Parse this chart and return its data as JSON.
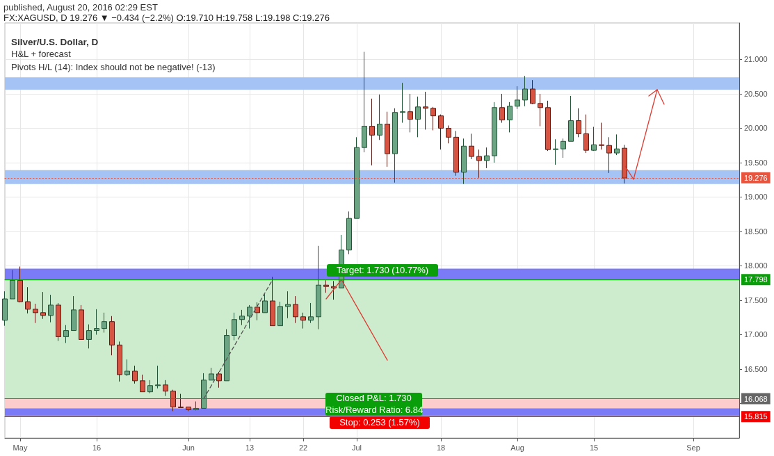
{
  "chart_data": {
    "type": "candlestick",
    "title": "FX:XAGUSD, D 19.276 ▼ −0.434 (−2.2%) O:19.710 H:19.758 L:19.198 C:19.276",
    "subtitle": "Silver/U.S. Dollar, D",
    "annotations": [
      "published, August 20, 2016 02:29 EST",
      "H&L + forecast",
      "Pivots H/L (14): Index should not be negative! (-13)",
      "Target: 1.730 (10.77%)",
      "Closed P&L: 1.730",
      "Risk/Reward Ratio: 6.84",
      "Stop: 0.253 (1.57%)"
    ],
    "categories": [
      null,
      null,
      "May",
      null,
      null,
      null,
      null,
      null,
      null,
      null,
      null,
      null,
      "16",
      null,
      null,
      null,
      null,
      null,
      null,
      null,
      null,
      null,
      null,
      null,
      "Jun",
      null,
      null,
      null,
      null,
      null,
      null,
      null,
      "13",
      null,
      null,
      null,
      null,
      null,
      null,
      "22",
      null,
      null,
      null,
      null,
      null,
      null,
      "Jul",
      null,
      null,
      null,
      null,
      null,
      null,
      null,
      null,
      null,
      null,
      "18",
      null,
      null,
      null,
      null,
      null,
      null,
      null,
      null,
      null,
      "Aug",
      null,
      null,
      null,
      null,
      null,
      null,
      null,
      null,
      null,
      "15",
      null,
      null,
      null,
      null,
      null,
      null,
      null,
      null,
      null,
      null,
      null,
      null,
      "Sep",
      null,
      null,
      null,
      null,
      null,
      null
    ],
    "ohlc": [
      [
        17.21,
        17.63,
        17.13,
        17.52
      ],
      [
        17.52,
        17.94,
        17.52,
        17.79
      ],
      [
        17.79,
        17.99,
        17.47,
        17.48
      ],
      [
        17.48,
        17.69,
        17.31,
        17.37
      ],
      [
        17.37,
        17.45,
        17.17,
        17.32
      ],
      [
        17.32,
        17.62,
        17.23,
        17.28
      ],
      [
        17.28,
        17.58,
        17.18,
        17.43
      ],
      [
        17.43,
        17.46,
        16.91,
        16.97
      ],
      [
        16.97,
        17.14,
        16.88,
        17.06
      ],
      [
        17.06,
        17.56,
        17.06,
        17.36
      ],
      [
        17.36,
        17.43,
        16.93,
        16.93
      ],
      [
        16.93,
        17.15,
        16.8,
        17.06
      ],
      [
        17.06,
        17.37,
        17.0,
        17.09
      ],
      [
        17.09,
        17.32,
        17.03,
        17.19
      ],
      [
        17.19,
        17.27,
        16.7,
        16.85
      ],
      [
        16.85,
        16.9,
        16.32,
        16.42
      ],
      [
        16.42,
        16.64,
        16.4,
        16.47
      ],
      [
        16.47,
        16.55,
        16.29,
        16.33
      ],
      [
        16.33,
        16.42,
        16.17,
        16.17
      ],
      [
        16.17,
        16.34,
        16.15,
        16.26
      ],
      [
        16.26,
        16.55,
        16.22,
        16.27
      ],
      [
        16.27,
        16.34,
        16.11,
        16.18
      ],
      [
        16.18,
        16.2,
        15.89,
        15.95
      ],
      [
        15.95,
        16.14,
        15.94,
        15.94
      ],
      [
        15.95,
        15.95,
        15.89,
        15.91
      ],
      [
        15.91,
        16.03,
        15.9,
        15.93
      ],
      [
        15.93,
        16.44,
        15.93,
        16.34
      ],
      [
        16.34,
        16.52,
        16.34,
        16.43
      ],
      [
        16.43,
        16.46,
        16.23,
        16.33
      ],
      [
        16.33,
        17.08,
        16.33,
        16.99
      ],
      [
        16.99,
        17.32,
        16.92,
        17.22
      ],
      [
        17.22,
        17.36,
        17.14,
        17.27
      ],
      [
        17.27,
        17.43,
        17.09,
        17.4
      ],
      [
        17.4,
        17.47,
        17.21,
        17.32
      ],
      [
        17.32,
        17.59,
        17.32,
        17.49
      ],
      [
        17.49,
        17.84,
        17.13,
        17.13
      ],
      [
        17.13,
        17.48,
        17.13,
        17.41
      ],
      [
        17.41,
        17.63,
        17.24,
        17.44
      ],
      [
        17.44,
        17.56,
        17.17,
        17.26
      ],
      [
        17.26,
        17.32,
        17.09,
        17.21
      ],
      [
        17.21,
        17.46,
        17.17,
        17.26
      ],
      [
        17.26,
        18.29,
        17.08,
        17.72
      ],
      [
        17.72,
        17.79,
        17.61,
        17.7
      ],
      [
        17.7,
        17.78,
        17.51,
        17.68
      ],
      [
        17.68,
        18.45,
        17.68,
        18.23
      ],
      [
        18.23,
        18.79,
        18.17,
        18.69
      ],
      [
        18.69,
        19.87,
        18.69,
        19.72
      ],
      [
        19.72,
        21.11,
        19.65,
        20.03
      ],
      [
        20.03,
        20.43,
        19.46,
        19.9
      ],
      [
        19.9,
        20.49,
        19.83,
        20.06
      ],
      [
        20.06,
        20.24,
        19.44,
        19.63
      ],
      [
        19.63,
        20.29,
        19.21,
        20.23
      ],
      [
        20.23,
        20.66,
        20.08,
        20.24
      ],
      [
        20.24,
        20.5,
        19.94,
        20.13
      ],
      [
        20.13,
        20.46,
        19.87,
        20.31
      ],
      [
        20.31,
        20.53,
        19.98,
        20.29
      ],
      [
        20.29,
        20.31,
        19.97,
        20.18
      ],
      [
        20.18,
        20.2,
        19.69,
        20.0
      ],
      [
        20.0,
        20.04,
        19.78,
        19.87
      ],
      [
        19.87,
        19.96,
        19.31,
        19.36
      ],
      [
        19.36,
        19.85,
        19.19,
        19.74
      ],
      [
        19.74,
        19.92,
        19.55,
        19.59
      ],
      [
        19.59,
        19.69,
        19.28,
        19.53
      ],
      [
        19.53,
        19.72,
        19.42,
        19.6
      ],
      [
        19.6,
        20.38,
        19.5,
        20.3
      ],
      [
        20.3,
        20.5,
        20.08,
        20.12
      ],
      [
        20.12,
        20.38,
        19.94,
        20.32
      ],
      [
        20.32,
        20.61,
        20.28,
        20.41
      ],
      [
        20.41,
        20.76,
        20.32,
        20.57
      ],
      [
        20.57,
        20.7,
        20.35,
        20.36
      ],
      [
        20.36,
        20.5,
        20.03,
        20.3
      ],
      [
        20.3,
        20.4,
        19.67,
        19.69
      ],
      [
        19.69,
        19.84,
        19.47,
        19.7
      ],
      [
        19.7,
        19.85,
        19.57,
        19.81
      ],
      [
        19.81,
        20.47,
        19.81,
        20.11
      ],
      [
        20.11,
        20.29,
        19.87,
        19.92
      ],
      [
        19.92,
        20.2,
        19.64,
        19.68
      ],
      [
        19.68,
        20.02,
        19.67,
        19.76
      ],
      [
        19.76,
        20.08,
        19.69,
        19.75
      ],
      [
        19.75,
        19.87,
        19.35,
        19.64
      ],
      [
        19.64,
        19.91,
        19.61,
        19.7
      ],
      [
        19.71,
        19.758,
        19.198,
        19.276
      ],
      null,
      null,
      null,
      null,
      null,
      null,
      null,
      null,
      null,
      null,
      null,
      null,
      null,
      null,
      null
    ],
    "series": [
      {
        "type": "line",
        "color": "#555555",
        "line_style": "dashed",
        "values": [
          null,
          null,
          null,
          null,
          null,
          null,
          null,
          null,
          null,
          null,
          null,
          null,
          null,
          null,
          null,
          null,
          null,
          null,
          null,
          null,
          null,
          null,
          null,
          null,
          null,
          null,
          16.07,
          null,
          null,
          null,
          null,
          null,
          null,
          null,
          null,
          17.8,
          null,
          null,
          null,
          null,
          null,
          null,
          null,
          null,
          null,
          null,
          null,
          null,
          null,
          null,
          null,
          null,
          null,
          null,
          null,
          null,
          null,
          null,
          null,
          null,
          null,
          null,
          null,
          null,
          null,
          null,
          null,
          null,
          null,
          null,
          null,
          null,
          null,
          null,
          null,
          null,
          null,
          null,
          null,
          null,
          null,
          null,
          null,
          null,
          null,
          null,
          null,
          null,
          null,
          null,
          null,
          null,
          null,
          null,
          null,
          null,
          null
        ]
      },
      {
        "type": "line",
        "color": "#dd3c32",
        "line_style": "solid",
        "values": [
          null,
          null,
          null,
          null,
          null,
          null,
          null,
          null,
          null,
          null,
          null,
          null,
          null,
          null,
          null,
          null,
          null,
          null,
          null,
          null,
          null,
          null,
          null,
          null,
          null,
          null,
          null,
          null,
          null,
          null,
          null,
          null,
          null,
          null,
          null,
          null,
          null,
          null,
          null,
          null,
          null,
          null,
          17.52,
          null,
          17.8,
          null,
          null,
          null,
          null,
          null,
          16.63,
          null,
          null,
          null,
          null,
          null,
          null,
          null,
          null,
          null,
          null,
          null,
          null,
          null,
          null,
          null,
          null,
          null,
          null,
          null,
          null,
          null,
          null,
          null,
          null,
          null,
          null,
          null,
          null,
          null,
          null,
          null,
          null,
          null,
          null,
          null,
          null,
          null,
          null,
          null,
          null,
          null,
          null,
          null,
          null,
          null,
          null
        ]
      }
    ],
    "ylim": [
      15.5,
      21.53
    ],
    "yticks": [
      {
        "value": 16,
        "label": null
      },
      {
        "value": 16.5,
        "label": "16.500"
      },
      {
        "value": 17,
        "label": "17.000"
      },
      {
        "value": 17.5,
        "label": "17.500"
      },
      {
        "value": 18,
        "label": "18.000"
      },
      {
        "value": 18.5,
        "label": "18.500"
      },
      {
        "value": 19,
        "label": "19.000"
      },
      {
        "value": 19.5,
        "label": "19.500"
      },
      {
        "value": 20,
        "label": "20.000"
      },
      {
        "value": 20.5,
        "label": "20.500"
      },
      {
        "value": 21,
        "label": "21.000"
      }
    ],
    "bands": [
      {
        "axis": "y",
        "from": 16.068,
        "to": 17.798,
        "color": "#cdebcd"
      },
      {
        "axis": "y",
        "from": 15.815,
        "to": 16.068,
        "color": "#fccbcb"
      },
      {
        "axis": "y",
        "from": 15.82,
        "to": 15.93,
        "color": "#7b7bf7"
      },
      {
        "axis": "y",
        "from": 17.79,
        "to": 17.96,
        "color": "#7b7bf7"
      },
      {
        "axis": "y",
        "from": 19.19,
        "to": 19.39,
        "color": "#a5c3f4"
      },
      {
        "axis": "y",
        "from": 20.56,
        "to": 20.74,
        "color": "#a5c3f4"
      }
    ],
    "ref_lines": [
      {
        "axis": "y",
        "value": 19.276,
        "label": "19.276",
        "color": "#e8553f",
        "line_style": "dotted"
      },
      {
        "axis": "y",
        "value": 17.798,
        "label": "17.798",
        "color": "#0a9e0a",
        "line_style": "solid"
      },
      {
        "axis": "y",
        "value": 16.068,
        "label": "16.068",
        "color": "#666666",
        "line_style": "solid"
      },
      {
        "axis": "y",
        "value": 15.815,
        "label": "15.815",
        "color": "#f20000",
        "line_style": "solid"
      }
    ],
    "grid": true
  }
}
